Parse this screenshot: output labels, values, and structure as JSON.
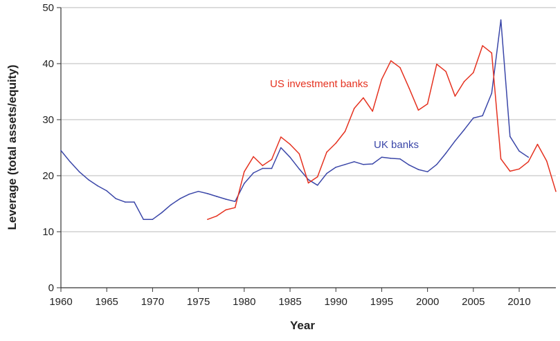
{
  "chart_data": {
    "type": "line",
    "xlabel": "Year",
    "ylabel": "Leverage (total assets/equity)",
    "xlim": [
      1960,
      2014
    ],
    "ylim": [
      0,
      50
    ],
    "x_ticks": [
      "1960",
      "1965",
      "1970",
      "1975",
      "1980",
      "1985",
      "1990",
      "1995",
      "2000",
      "2005",
      "2010"
    ],
    "y_ticks": [
      "0",
      "10",
      "20",
      "30",
      "40",
      "50"
    ],
    "grid": "horizontal",
    "legend": "none",
    "series": [
      {
        "name": "UK banks",
        "color": "#3a46a8",
        "x": [
          1960,
          1961,
          1962,
          1963,
          1964,
          1965,
          1966,
          1967,
          1968,
          1969,
          1970,
          1971,
          1972,
          1973,
          1974,
          1975,
          1976,
          1977,
          1978,
          1979,
          1980,
          1981,
          1982,
          1983,
          1984,
          1985,
          1986,
          1987,
          1988,
          1989,
          1990,
          1991,
          1992,
          1993,
          1994,
          1995,
          1996,
          1997,
          1998,
          1999,
          2000,
          2001,
          2002,
          2003,
          2004,
          2005,
          2006,
          2007,
          2008,
          2009,
          2010,
          2011
        ],
        "y": [
          24.5,
          22.5,
          20.7,
          19.3,
          18.2,
          17.3,
          15.9,
          15.3,
          15.3,
          12.2,
          12.2,
          13.4,
          14.8,
          15.9,
          16.7,
          17.2,
          16.8,
          16.3,
          15.8,
          15.4,
          18.6,
          20.5,
          21.3,
          21.3,
          25.0,
          23.3,
          21.2,
          19.3,
          18.3,
          20.4,
          21.5,
          22.0,
          22.5,
          22.0,
          22.1,
          23.3,
          23.1,
          23.0,
          21.9,
          21.1,
          20.7,
          22.0,
          24.0,
          26.2,
          28.2,
          30.3,
          30.7,
          34.7,
          47.8,
          27.0,
          24.4,
          23.3
        ]
      },
      {
        "name": "US investment banks",
        "color": "#e5311f",
        "x": [
          1976,
          1977,
          1978,
          1979,
          1980,
          1981,
          1982,
          1983,
          1984,
          1985,
          1986,
          1987,
          1988,
          1989,
          1990,
          1991,
          1992,
          1993,
          1994,
          1995,
          1996,
          1997,
          1998,
          1999,
          2000,
          2001,
          2002,
          2003,
          2004,
          2005,
          2006,
          2007,
          2008,
          2009,
          2010,
          2011,
          2012,
          2013,
          2014
        ],
        "y": [
          12.2,
          12.8,
          13.9,
          14.3,
          20.7,
          23.4,
          21.8,
          22.9,
          26.9,
          25.6,
          23.9,
          18.7,
          19.8,
          24.2,
          25.8,
          27.9,
          32.0,
          33.9,
          31.5,
          37.2,
          40.5,
          39.3,
          35.6,
          31.7,
          32.8,
          39.9,
          38.6,
          34.2,
          36.8,
          38.4,
          43.2,
          41.9,
          23.0,
          20.8,
          21.2,
          22.5,
          25.6,
          22.6,
          17.2
        ]
      }
    ],
    "annotations": [
      {
        "text": "US investment banks",
        "series": "US investment banks"
      },
      {
        "text": "UK banks",
        "series": "UK banks"
      }
    ]
  }
}
